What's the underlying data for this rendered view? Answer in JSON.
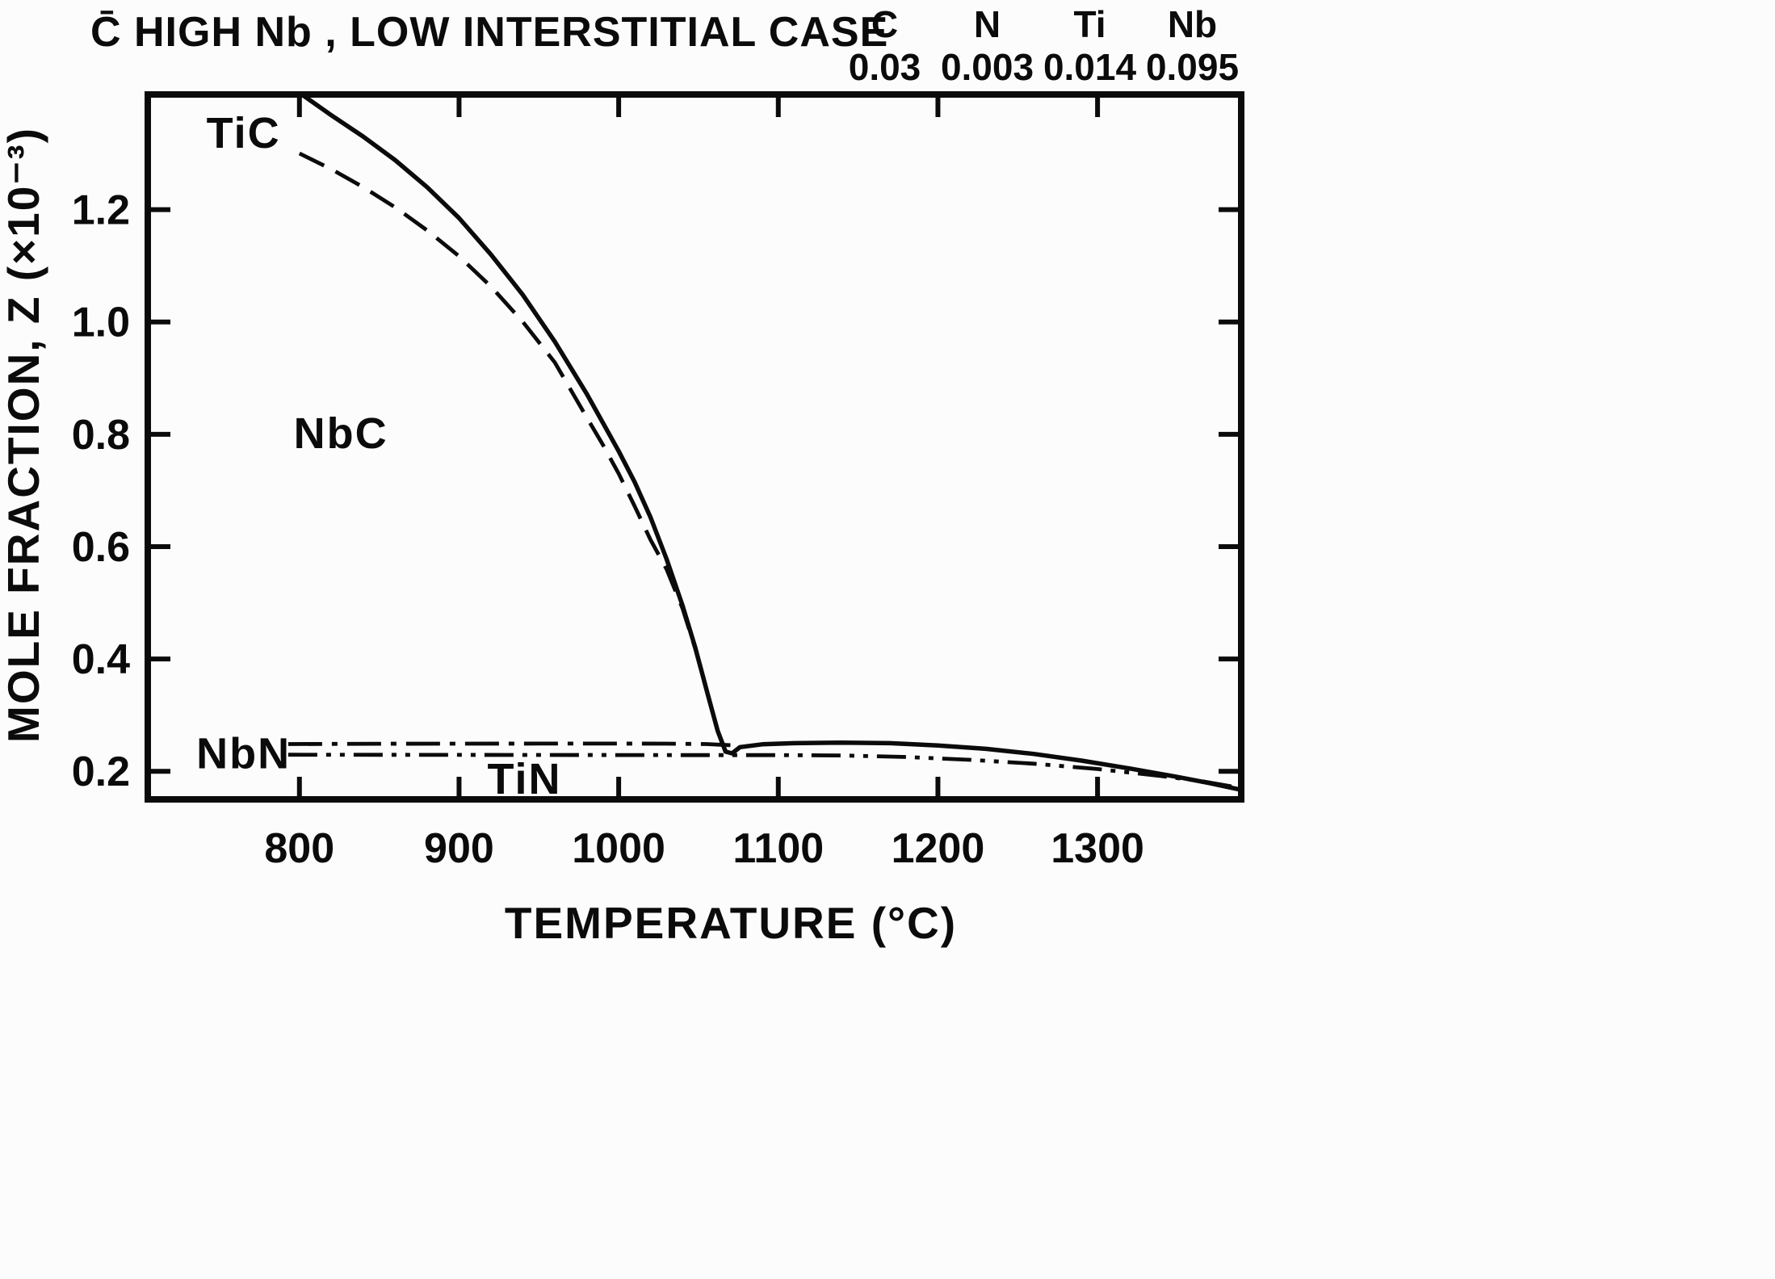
{
  "header": {
    "title": "C̄ HIGH Nb , LOW INTERSTITIAL CASE"
  },
  "composition": {
    "columns": [
      {
        "element": "C",
        "value": "0.03"
      },
      {
        "element": "N",
        "value": "0.003"
      },
      {
        "element": "Ti",
        "value": "0.014"
      },
      {
        "element": "Nb",
        "value": "0.095"
      }
    ]
  },
  "chart_data": {
    "type": "line",
    "title": "C̄ HIGH Nb, LOW INTERSTITIAL CASE",
    "xlabel": "TEMPERATURE (°C)",
    "ylabel": "MOLE FRACTION, Z (×10⁻³)",
    "xlim": [
      705,
      1390
    ],
    "ylim": [
      0.15,
      1.405
    ],
    "x_ticks": [
      800,
      900,
      1000,
      1100,
      1200,
      1300
    ],
    "y_ticks": [
      0.2,
      0.4,
      0.6,
      0.8,
      1.0,
      1.2
    ],
    "grid": false,
    "legend_position": "none",
    "series": [
      {
        "name": "TiC",
        "style": "solid",
        "points": [
          [
            803,
            1.402
          ],
          [
            820,
            1.368
          ],
          [
            840,
            1.33
          ],
          [
            860,
            1.288
          ],
          [
            880,
            1.24
          ],
          [
            900,
            1.185
          ],
          [
            920,
            1.12
          ],
          [
            940,
            1.048
          ],
          [
            960,
            0.965
          ],
          [
            980,
            0.872
          ],
          [
            1000,
            0.77
          ],
          [
            1010,
            0.715
          ],
          [
            1020,
            0.652
          ],
          [
            1030,
            0.578
          ],
          [
            1040,
            0.495
          ],
          [
            1048,
            0.42
          ],
          [
            1056,
            0.335
          ],
          [
            1062,
            0.272
          ],
          [
            1067,
            0.235
          ],
          [
            1071,
            0.232
          ],
          [
            1076,
            0.243
          ],
          [
            1090,
            0.248
          ],
          [
            1110,
            0.25
          ],
          [
            1140,
            0.251
          ],
          [
            1170,
            0.25
          ],
          [
            1200,
            0.246
          ],
          [
            1230,
            0.24
          ],
          [
            1260,
            0.231
          ],
          [
            1290,
            0.219
          ],
          [
            1320,
            0.205
          ],
          [
            1350,
            0.19
          ],
          [
            1370,
            0.179
          ],
          [
            1390,
            0.167
          ]
        ]
      },
      {
        "name": "NbC",
        "style": "dashed",
        "points": [
          [
            800,
            1.3
          ],
          [
            820,
            1.272
          ],
          [
            840,
            1.24
          ],
          [
            860,
            1.204
          ],
          [
            880,
            1.163
          ],
          [
            900,
            1.117
          ],
          [
            920,
            1.063
          ],
          [
            940,
            1.0
          ],
          [
            960,
            0.928
          ],
          [
            980,
            0.83
          ],
          [
            990,
            0.782
          ],
          [
            1000,
            0.73
          ],
          [
            1010,
            0.672
          ],
          [
            1020,
            0.612
          ],
          [
            1030,
            0.56
          ],
          [
            1040,
            0.49
          ],
          [
            1048,
            0.418
          ],
          [
            1056,
            0.334
          ],
          [
            1062,
            0.272
          ],
          [
            1066,
            0.243
          ]
        ]
      },
      {
        "name": "NbN",
        "style": "dashdot",
        "points": [
          [
            793,
            0.2485
          ],
          [
            850,
            0.249
          ],
          [
            900,
            0.2492
          ],
          [
            950,
            0.2494
          ],
          [
            1000,
            0.2494
          ],
          [
            1030,
            0.2492
          ],
          [
            1055,
            0.2485
          ],
          [
            1070,
            0.2465
          ]
        ]
      },
      {
        "name": "TiN",
        "style": "dashdotdot",
        "points": [
          [
            793,
            0.2295
          ],
          [
            850,
            0.2294
          ],
          [
            900,
            0.2292
          ],
          [
            950,
            0.229
          ],
          [
            1000,
            0.2289
          ],
          [
            1050,
            0.2288
          ],
          [
            1100,
            0.2288
          ],
          [
            1140,
            0.2282
          ],
          [
            1180,
            0.2255
          ],
          [
            1220,
            0.2205
          ],
          [
            1260,
            0.2135
          ],
          [
            1300,
            0.204
          ],
          [
            1340,
            0.1915
          ],
          [
            1365,
            0.1825
          ],
          [
            1390,
            0.17
          ]
        ]
      }
    ],
    "annotations": [
      {
        "text": "TiC",
        "x": 765,
        "y": 1.31
      },
      {
        "text": "NbC",
        "x": 826,
        "y": 0.775
      },
      {
        "text": "NbN",
        "x": 765,
        "y": 0.205
      },
      {
        "text": "TiN",
        "x": 941,
        "y": 0.16
      }
    ]
  }
}
